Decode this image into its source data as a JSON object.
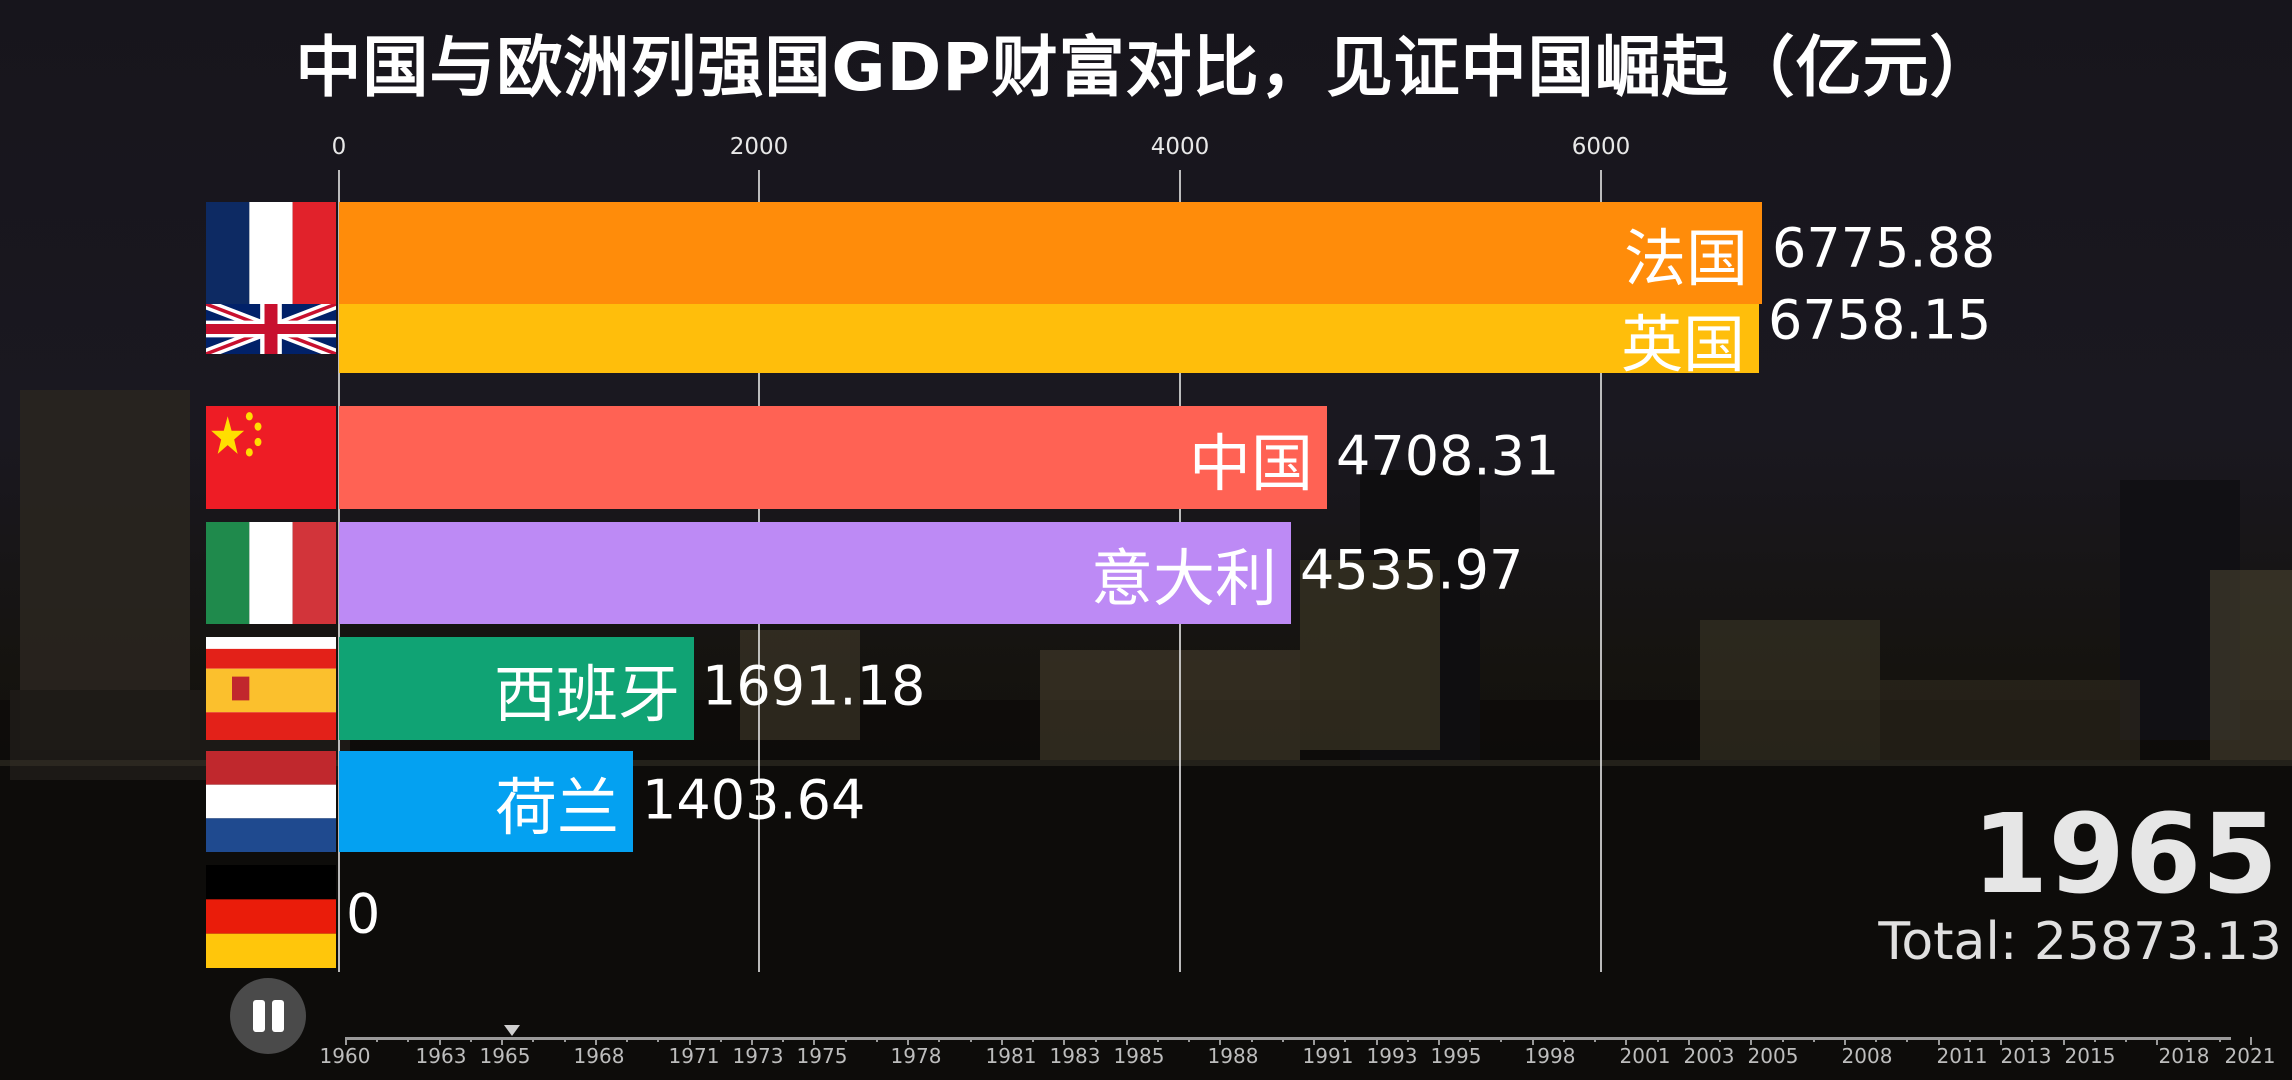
{
  "title": "中国与欧洲列强国GDP财富对比，见证中国崛起（亿元）",
  "chart_data": {
    "type": "bar",
    "orientation": "horizontal",
    "title": "中国与欧洲列强国GDP财富对比，见证中国崛起（亿元）",
    "xlabel": "",
    "ylabel": "",
    "xlim": [
      0,
      7000
    ],
    "x_ticks": [
      0,
      2000,
      4000,
      6000
    ],
    "grid": true,
    "categories": [
      "法国",
      "英国",
      "中国",
      "意大利",
      "西班牙",
      "荷兰",
      "德国"
    ],
    "values": [
      6775.88,
      6758.15,
      4708.31,
      4535.97,
      1691.18,
      1403.64,
      0
    ],
    "colors": [
      "#ff8c0a",
      "#ffbe0b",
      "#ff6254",
      "#bd8af5",
      "#10a374",
      "#04a1f1",
      "#888888"
    ],
    "year": "1965",
    "total": 25873.13
  },
  "axis": {
    "ticks": [
      "0",
      "2000",
      "4000",
      "6000"
    ]
  },
  "bars": [
    {
      "name": "法国",
      "value": "6775.88",
      "flag": "france-flag"
    },
    {
      "name": "英国",
      "value": "6758.15",
      "flag": "uk-flag"
    },
    {
      "name": "中国",
      "value": "4708.31",
      "flag": "china-flag"
    },
    {
      "name": "意大利",
      "value": "4535.97",
      "flag": "italy-flag"
    },
    {
      "name": "西班牙",
      "value": "1691.18",
      "flag": "spain-flag"
    },
    {
      "name": "荷兰",
      "value": "1403.64",
      "flag": "netherlands-flag"
    },
    {
      "name": "德国",
      "value": "0",
      "flag": "germany-flag"
    }
  ],
  "year_display": "1965",
  "total_display": "Total: 25873.13",
  "controls": {
    "pause_icon": "pause-icon"
  },
  "timeline": {
    "current": "1965",
    "labels": [
      "1960",
      "1963",
      "1965",
      "1968",
      "1971",
      "1973",
      "1975",
      "1978",
      "1981",
      "1983",
      "1985",
      "1988",
      "1991",
      "1993",
      "1995",
      "1998",
      "2001",
      "2003",
      "2005",
      "2008",
      "2011",
      "2013",
      "2015",
      "2018",
      "2021"
    ]
  }
}
